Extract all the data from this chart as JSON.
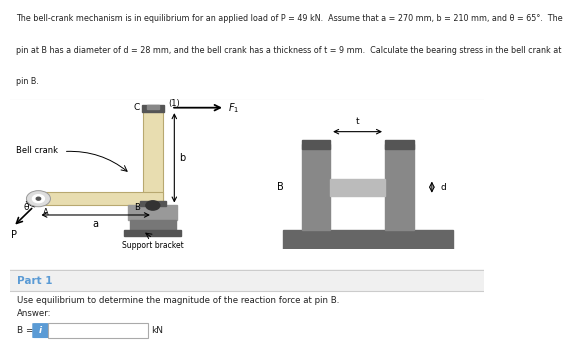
{
  "line1": "The bell-crank mechanism is in equilibrium for an applied load of P = 49 kN.  Assume that a = 270 mm, b = 210 mm, and θ = 65°.  The",
  "line2": "pin at B has a diameter of d = 28 mm, and the bell crank has a thickness of t = 9 mm.  Calculate the bearing stress in the bell crank at",
  "line3": "pin B.",
  "part1_label": "Part 1",
  "part1_text": "Use equilibrium to determine the magnitude of the reaction force at pin B.",
  "answer_label": "Answer:",
  "b_label": "B =",
  "kn_label": "kN",
  "bg_white": "#ffffff",
  "bg_gray": "#f0f0f0",
  "blue_color": "#5b9bd5",
  "text_color": "#222222",
  "bell_crank_color": "#e8ddb0",
  "bell_crank_edge": "#b8a870",
  "support_dark": "#6b6b6b",
  "support_mid": "#8c8c8c",
  "support_light": "#aaaaaa",
  "pin_color": "#444444",
  "divider_color": "#cccccc"
}
